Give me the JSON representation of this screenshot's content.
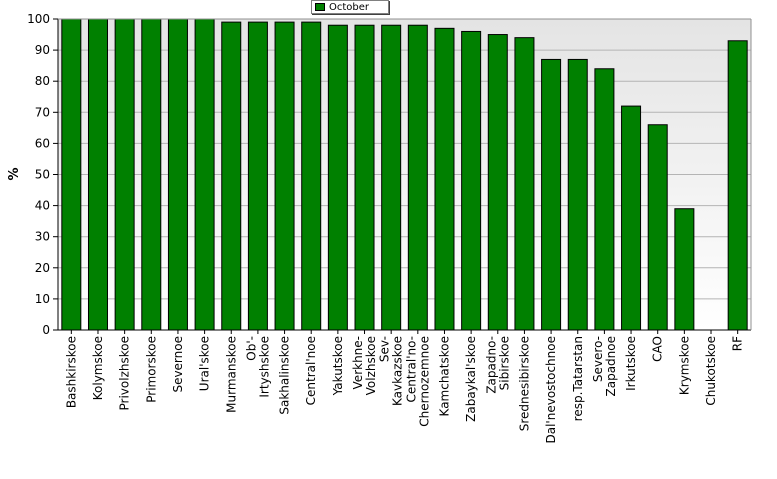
{
  "chart_data": {
    "type": "bar",
    "legend": [
      {
        "name": "October",
        "color": "#008000"
      }
    ],
    "legend_position": "top-center",
    "ylabel": "%",
    "ylim": [
      0,
      100
    ],
    "yticks": [
      0,
      10,
      20,
      30,
      40,
      50,
      60,
      70,
      80,
      90,
      100
    ],
    "grid": true,
    "categories": [
      "Bashkirskoe",
      "Kolymskoe",
      "Privolzhskoe",
      "Primorskoe",
      "Severnoe",
      "Ural'skoe",
      "Murmanskoe",
      "Ob'-Irtyshskoe",
      "Sakhalinskoe",
      "Central'noe",
      "Yakutskoe",
      "Verkhne-Volzhskoe",
      "Sev-Kavkazskoe",
      "Central'no-Chernozemnoe",
      "Kamchatskoe",
      "Zabaykal'skoe",
      "Zapadno-Sibirskoe",
      "Srednesibirskoe",
      "Dal'nevostochnoe",
      "resp.Tatarstan",
      "Severo-Zapadnoe",
      "Irkutskoe",
      "CAO",
      "Krymskoe",
      "Chukotskoe",
      "RF"
    ],
    "category_lines": [
      [
        "Bashkirskoe"
      ],
      [
        "Kolymskoe"
      ],
      [
        "Privolzhskoe"
      ],
      [
        "Primorskoe"
      ],
      [
        "Severnoe"
      ],
      [
        "Ural'skoe"
      ],
      [
        "Murmanskoe"
      ],
      [
        "Ob'-",
        "Irtyshskoe"
      ],
      [
        "Sakhalinskoe"
      ],
      [
        "Central'noe"
      ],
      [
        "Yakutskoe"
      ],
      [
        "Verkhne-",
        "Volzhskoe"
      ],
      [
        "Sev-",
        "Kavkazskoe"
      ],
      [
        "Central'no-",
        "Chernozemnoe"
      ],
      [
        "Kamchatskoe"
      ],
      [
        "Zabaykal'skoe"
      ],
      [
        "Zapadno-",
        "Sibirskoe"
      ],
      [
        "Srednesibirskoe"
      ],
      [
        "Dal'nevostochnoe"
      ],
      [
        "resp.Tatarstan"
      ],
      [
        "Severo-",
        "Zapadnoe"
      ],
      [
        "Irkutskoe"
      ],
      [
        "CAO"
      ],
      [
        "Krymskoe"
      ],
      [
        "Chukotskoe"
      ],
      [
        "RF"
      ]
    ],
    "series": [
      {
        "name": "October",
        "color": "#008000",
        "values": [
          100,
          100,
          100,
          100,
          100,
          100,
          99,
          99,
          99,
          99,
          98,
          98,
          98,
          98,
          97,
          96,
          95,
          94,
          87,
          87,
          84,
          72,
          66,
          39,
          0,
          93
        ]
      }
    ]
  }
}
